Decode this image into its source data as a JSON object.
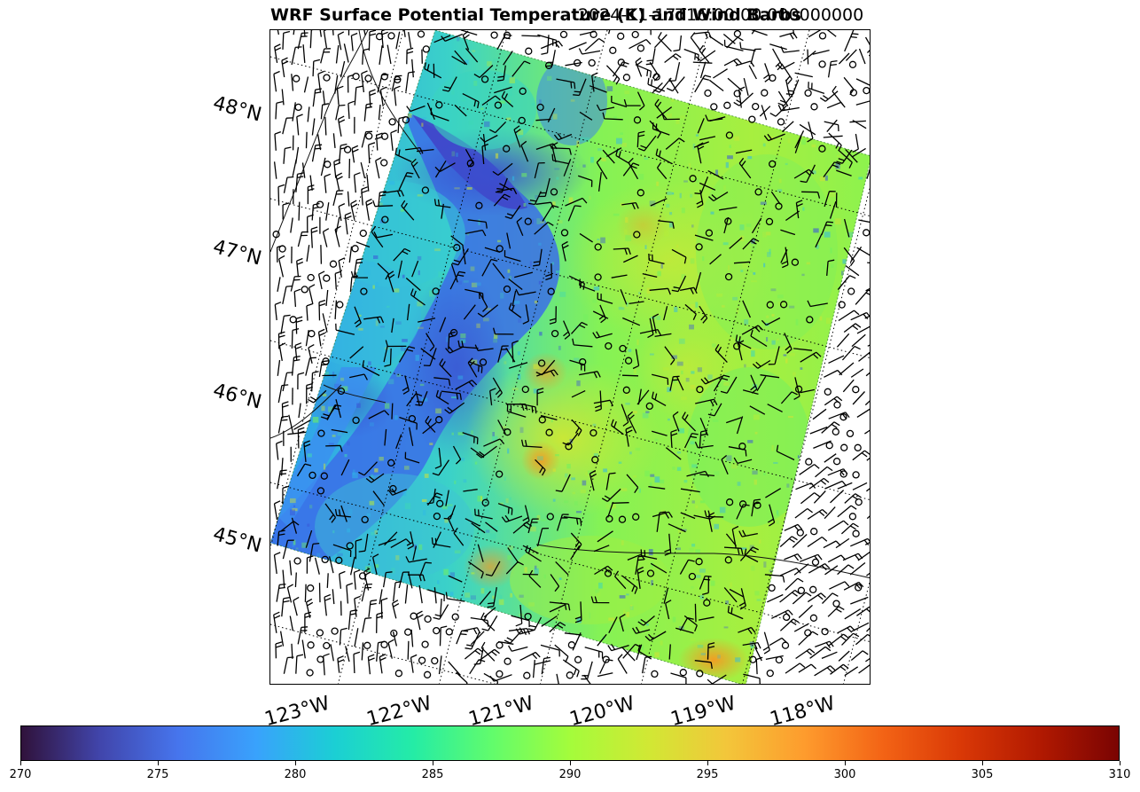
{
  "title": {
    "left": "WRF Surface Potential Temperature (K) and Wind Barbs",
    "right": "2024-11-17T16:00:00.000000000"
  },
  "map": {
    "lat_labels": [
      "48°N",
      "47°N",
      "46°N",
      "45°N"
    ],
    "lon_labels": [
      "123°W",
      "122°W",
      "121°W",
      "120°W",
      "119°W",
      "118°W"
    ],
    "domain_corners_description": "rotated WRF domain filled with potential temperature"
  },
  "colorbar": {
    "colormap": "turbo",
    "min": 270,
    "max": 310,
    "ticks": [
      "270",
      "275",
      "280",
      "285",
      "290",
      "295",
      "300",
      "305",
      "310"
    ]
  },
  "colors": {
    "cold": "#3b56d6",
    "cool": "#2bb2ee",
    "mid": "#59f07a",
    "warm": "#c9ec35",
    "hot": "#f5a124"
  }
}
